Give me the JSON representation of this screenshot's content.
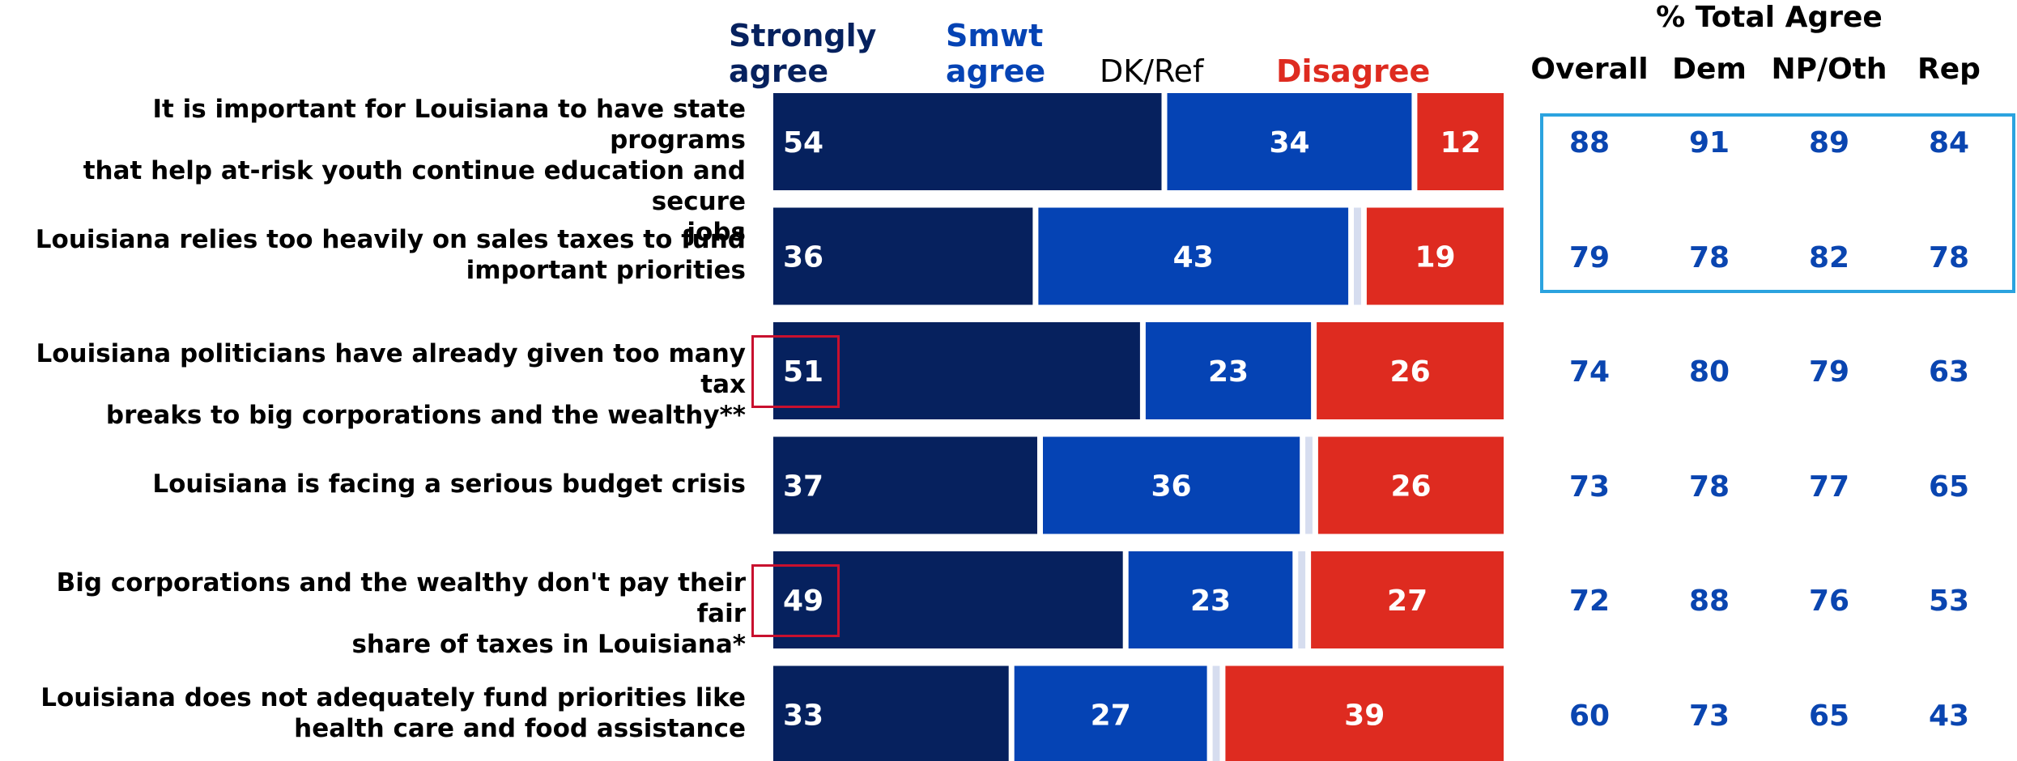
{
  "legend": {
    "strongly": "Strongly\nagree",
    "smwt": "Smwt\nagree",
    "dk": "DK/Ref",
    "disagree": "Disagree"
  },
  "totals_header": {
    "title": "% Total Agree",
    "columns": [
      "Overall",
      "Dem",
      "NP/Oth",
      "Rep"
    ]
  },
  "colors": {
    "strongly": "#06215E",
    "smwt": "#0543B4",
    "dk": "#D6DDEF",
    "disagree": "#DE2B20",
    "totals": "#0A45B0",
    "highlight": "#2BA3DF",
    "callout": "#C8102E"
  },
  "chart_data": {
    "type": "bar",
    "orientation": "horizontal",
    "stacked": true,
    "categories": [
      "It is important for Louisiana to have state programs that help at-risk youth continue education and secure jobs",
      "Louisiana relies too heavily on sales taxes to fund important priorities",
      "Louisiana politicians have already given too many tax breaks to big corporations and the wealthy**",
      "Louisiana is facing a serious budget crisis",
      "Big corporations and the wealthy don't pay their fair share of taxes in Louisiana*",
      "Louisiana does not adequately fund priorities like health care and food assistance"
    ],
    "series": [
      {
        "name": "Strongly agree",
        "values": [
          54,
          36,
          51,
          37,
          49,
          33
        ]
      },
      {
        "name": "Smwt agree",
        "values": [
          34,
          43,
          23,
          36,
          23,
          27
        ]
      },
      {
        "name": "DK/Ref",
        "values": [
          0,
          1,
          0,
          1,
          1,
          1
        ]
      },
      {
        "name": "Disagree",
        "values": [
          12,
          19,
          26,
          26,
          27,
          39
        ]
      }
    ],
    "totals": {
      "title": "% Total Agree",
      "columns": [
        "Overall",
        "Dem",
        "NP/Oth",
        "Rep"
      ],
      "rows": [
        [
          88,
          91,
          89,
          84
        ],
        [
          79,
          78,
          82,
          78
        ],
        [
          74,
          80,
          79,
          63
        ],
        [
          73,
          78,
          77,
          65
        ],
        [
          72,
          88,
          76,
          53
        ],
        [
          60,
          73,
          65,
          43
        ]
      ]
    },
    "highlighted_rows": [
      0,
      1
    ],
    "callout_rows": [
      2,
      4
    ],
    "xlim": [
      0,
      100
    ]
  }
}
